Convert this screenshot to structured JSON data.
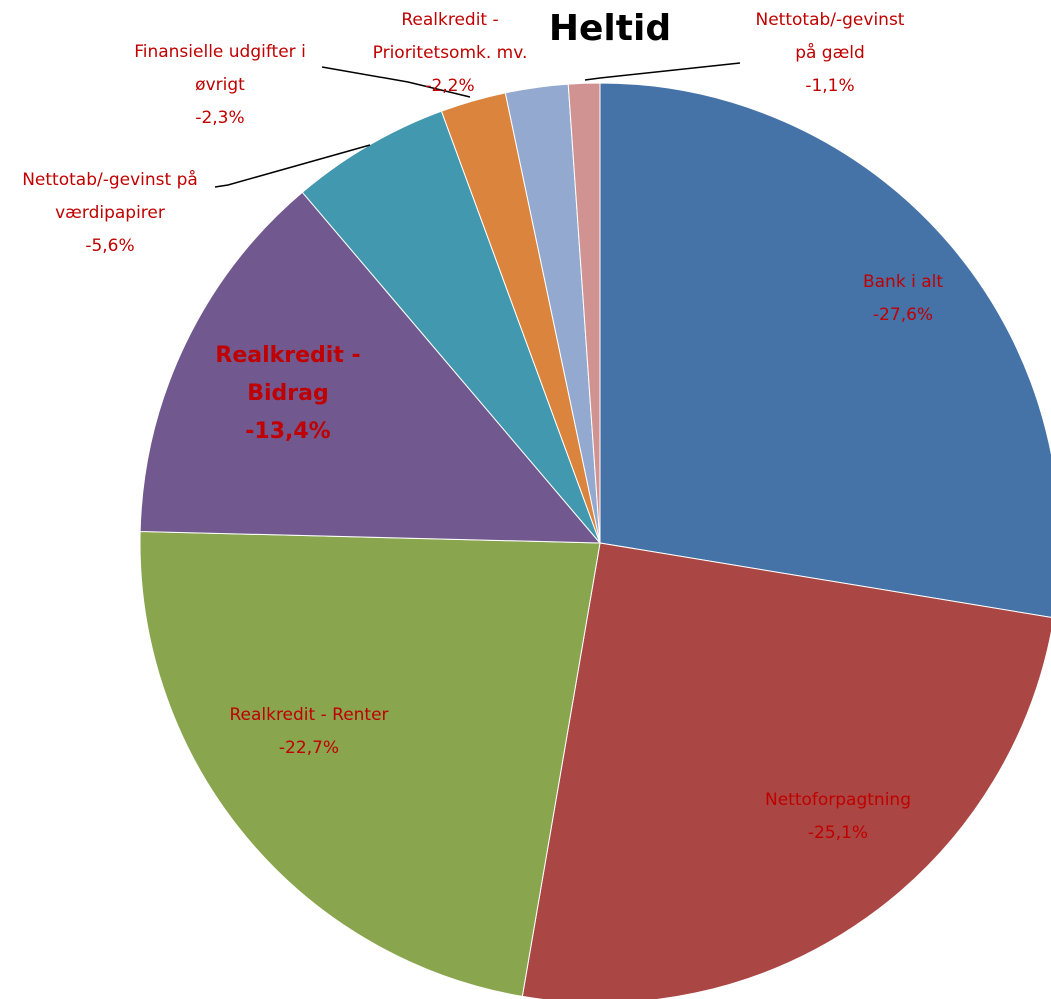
{
  "chart_data": {
    "type": "pie",
    "title": "Heltid",
    "categories": [
      "Bank i alt",
      "Nettoforpagtning",
      "Realkredit - Renter",
      "Realkredit - Bidrag",
      "Nettotab/-gevinst på værdipapirer",
      "Finansielle udgifter i øvrigt",
      "Realkredit - Prioritetsomk. mv.",
      "Nettotab/-gevinst på gæld"
    ],
    "values": [
      -27.6,
      -25.1,
      -22.7,
      -13.4,
      -5.6,
      -2.3,
      -2.2,
      -1.1
    ],
    "value_labels": [
      "-27,6%",
      "-25,1%",
      "-22,7%",
      "-13,4%",
      "-5,6%",
      "-2,3%",
      "-2,2%",
      "-1,1%"
    ],
    "colors": [
      "#4572a7",
      "#aa4643",
      "#89a54e",
      "#71588f",
      "#4198af",
      "#db843d",
      "#93a9cf",
      "#d19392"
    ]
  }
}
